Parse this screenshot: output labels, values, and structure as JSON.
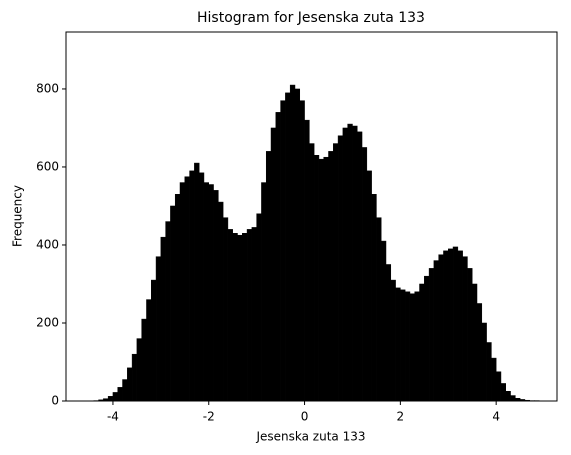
{
  "chart_data": {
    "type": "histogram",
    "title": "Histogram for Jesenska zuta 133",
    "xlabel": "Jesenska zuta 133",
    "ylabel": "Frequency",
    "color": "#000000",
    "bins": [
      -4.5,
      -4.4,
      -4.3,
      -4.2,
      -4.1,
      -4.0,
      -3.9,
      -3.8,
      -3.7,
      -3.6,
      -3.5,
      -3.4,
      -3.3,
      -3.2,
      -3.1,
      -3.0,
      -2.9,
      -2.8,
      -2.7,
      -2.6,
      -2.5,
      -2.4,
      -2.3,
      -2.2,
      -2.1,
      -2.0,
      -1.9,
      -1.8,
      -1.7,
      -1.6,
      -1.5,
      -1.4,
      -1.3,
      -1.2,
      -1.1,
      -1.0,
      -0.9,
      -0.8,
      -0.7,
      -0.6,
      -0.5,
      -0.4,
      -0.3,
      -0.2,
      -0.1,
      0.0,
      0.1,
      0.2,
      0.3,
      0.4,
      0.5,
      0.6,
      0.7,
      0.8,
      0.9,
      1.0,
      1.1,
      1.2,
      1.3,
      1.4,
      1.5,
      1.6,
      1.7,
      1.8,
      1.9,
      2.0,
      2.1,
      2.2,
      2.3,
      2.4,
      2.5,
      2.6,
      2.7,
      2.8,
      2.9,
      3.0,
      3.1,
      3.2,
      3.3,
      3.4,
      3.5,
      3.6,
      3.7,
      3.8,
      3.9,
      4.0,
      4.1,
      4.2,
      4.3,
      4.4,
      4.5,
      4.6,
      4.7,
      4.8,
      4.9,
      5.0
    ],
    "counts": [
      0,
      1,
      3,
      6,
      12,
      22,
      35,
      55,
      85,
      120,
      160,
      210,
      260,
      310,
      370,
      420,
      460,
      500,
      530,
      560,
      575,
      590,
      610,
      585,
      560,
      555,
      540,
      510,
      470,
      440,
      430,
      425,
      430,
      440,
      445,
      480,
      560,
      640,
      700,
      740,
      770,
      790,
      810,
      800,
      770,
      720,
      660,
      630,
      620,
      625,
      640,
      660,
      680,
      700,
      710,
      705,
      690,
      650,
      590,
      530,
      470,
      410,
      350,
      310,
      290,
      285,
      280,
      275,
      280,
      300,
      320,
      340,
      360,
      375,
      385,
      390,
      395,
      385,
      370,
      340,
      300,
      250,
      200,
      150,
      110,
      75,
      45,
      25,
      14,
      7,
      4,
      2,
      1,
      1,
      0
    ],
    "xlim": [
      -4.98,
      5.27
    ],
    "ylim": [
      0,
      946
    ],
    "xticks": [
      -4,
      -2,
      0,
      2,
      4
    ],
    "yticks": [
      0,
      200,
      400,
      600,
      800
    ]
  }
}
